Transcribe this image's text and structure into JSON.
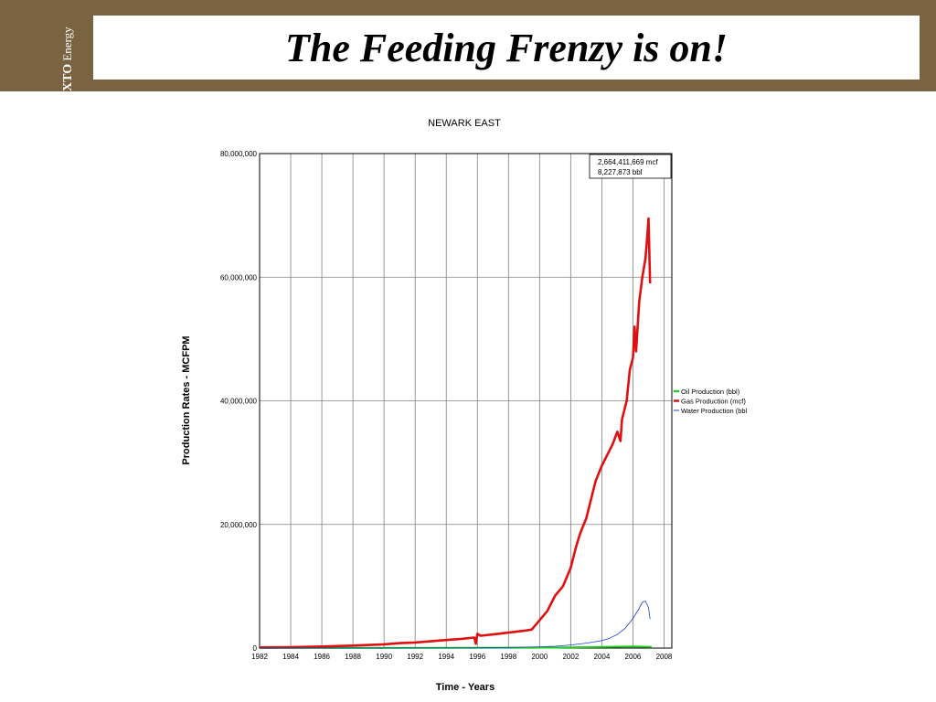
{
  "header": {
    "brand_strong": "XTO",
    "brand_rest": " Energy",
    "title": "The Feeding Frenzy is on!"
  },
  "colors": {
    "band": "#7a6340",
    "oil": "#22cc22",
    "gas": "#e01010",
    "water": "#1a3dcc",
    "grid": "#808080"
  },
  "chart_data": {
    "type": "line",
    "title": "NEWARK EAST",
    "xlabel": "Time - Years",
    "ylabel": "Production Rates - MCFPM",
    "xlim": [
      1982,
      2008.5
    ],
    "ylim": [
      0,
      80000000
    ],
    "x_ticks": [
      "1982",
      "1984",
      "1986",
      "1988",
      "1990",
      "1992",
      "1994",
      "1996",
      "1998",
      "2000",
      "2002",
      "2004",
      "2006",
      "2008"
    ],
    "y_ticks": [
      "0",
      "20,000,000",
      "40,000,000",
      "60,000,000",
      "80,000,000"
    ],
    "y_tick_values": [
      0,
      20000000,
      40000000,
      60000000,
      80000000
    ],
    "grid": true,
    "legend_position": "right",
    "annotation": [
      "2,664,411,669 mcf",
      "8,227,873 bbl"
    ],
    "series": [
      {
        "name": "Oil Production (bbl)",
        "color": "#22cc22",
        "x": [
          1982,
          1990,
          1995,
          2000,
          2003,
          2005,
          2006,
          2007,
          2007.2
        ],
        "y": [
          0,
          20000,
          30000,
          60000,
          150000,
          220000,
          250000,
          200000,
          180000
        ]
      },
      {
        "name": "Gas Production (mcf)",
        "color": "#e01010",
        "x": [
          1982,
          1984,
          1986,
          1988,
          1990,
          1991,
          1992,
          1993,
          1994,
          1995,
          1995.8,
          1995.9,
          1996,
          1996.2,
          1997,
          1998,
          1999,
          1999.5,
          2000,
          2000.5,
          2001,
          2001.5,
          2002,
          2002.3,
          2002.6,
          2003,
          2003.3,
          2003.6,
          2004,
          2004.3,
          2004.7,
          2005,
          2005.2,
          2005.3,
          2005.6,
          2005.8,
          2006,
          2006.1,
          2006.2,
          2006.4,
          2006.6,
          2006.8,
          2006.9,
          2007.0,
          2007.1
        ],
        "y": [
          100000,
          150000,
          250000,
          400000,
          600000,
          800000,
          900000,
          1100000,
          1300000,
          1500000,
          1700000,
          700000,
          2300000,
          2000000,
          2200000,
          2500000,
          2800000,
          3000000,
          4500000,
          6000000,
          8500000,
          10000000,
          13000000,
          16000000,
          18500000,
          21000000,
          24000000,
          27000000,
          29500000,
          31000000,
          33000000,
          35000000,
          33500000,
          37000000,
          40000000,
          45000000,
          47000000,
          52000000,
          48000000,
          56000000,
          60000000,
          63000000,
          66000000,
          69500000,
          59000000
        ]
      },
      {
        "name": "Water Production (bbl",
        "color": "#1a3dcc",
        "x": [
          1982,
          1996,
          1998,
          1999,
          2000,
          2001,
          2002,
          2003,
          2004,
          2004.5,
          2005,
          2005.5,
          2006,
          2006.3,
          2006.6,
          2006.8,
          2007.0,
          2007.1
        ],
        "y": [
          0,
          50000,
          100000,
          150000,
          200000,
          300000,
          500000,
          800000,
          1200000,
          1600000,
          2200000,
          3200000,
          4800000,
          6000000,
          7400000,
          7600000,
          6500000,
          4700000
        ]
      }
    ]
  }
}
